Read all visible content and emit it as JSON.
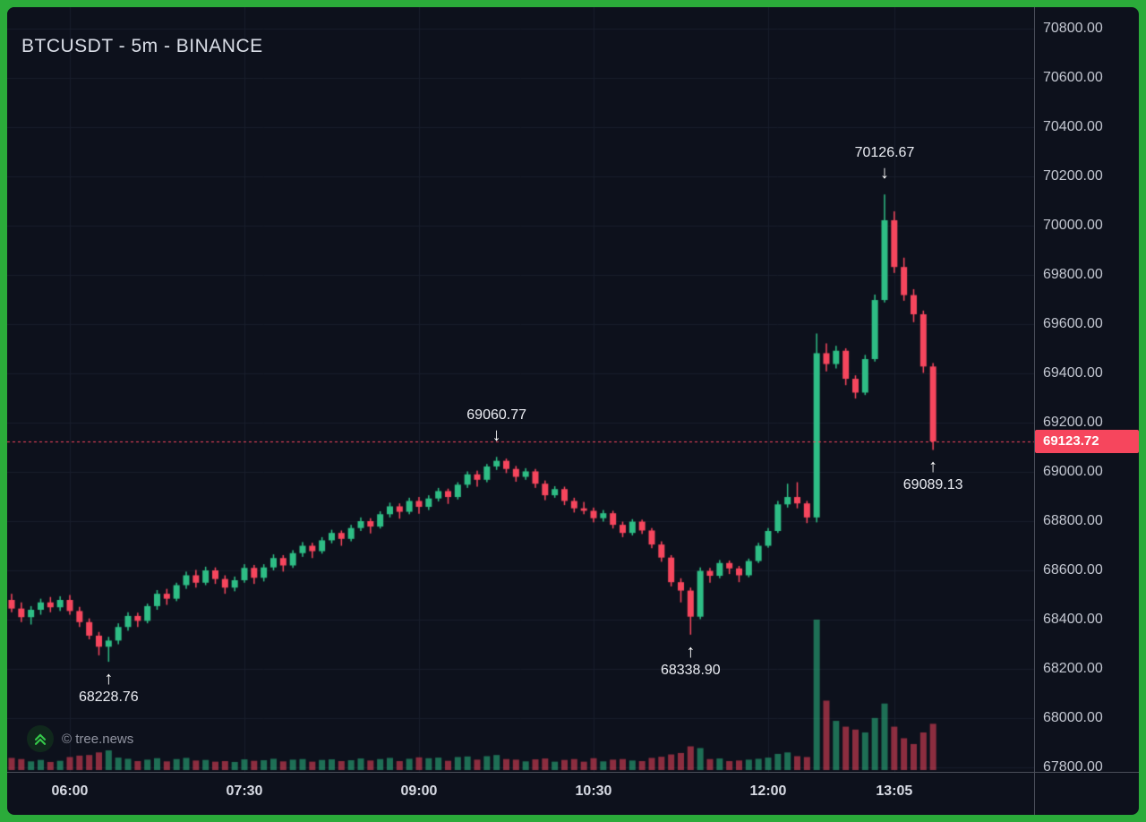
{
  "header": {
    "title": "BTCUSDT - 5m - BINANCE"
  },
  "watermark": {
    "label": "© tree.news"
  },
  "colors": {
    "frame": "#2bab3a",
    "bg": "#0d111c",
    "grid": "#181d2b",
    "up": "#2ebd85",
    "down": "#f6465d",
    "axis_text": "#c3c7d1",
    "time_text": "#d8dbe4",
    "price_tag_bg": "#f6465d",
    "price_line": "#f6465d",
    "annotation_text": "#eceef4",
    "separator": "#4a4e5a",
    "logo_green": "#35c94a"
  },
  "chart_data": {
    "type": "candlestick",
    "title": "BTCUSDT - 5m - BINANCE",
    "symbol": "BTCUSDT",
    "interval": "5m",
    "exchange": "BINANCE",
    "start_time": "05:30",
    "interval_min": 5,
    "grid": true,
    "y_axis": {
      "min": 67800,
      "max": 70800,
      "tick_step": 200,
      "labels": [
        "70800.00",
        "70600.00",
        "70400.00",
        "70200.00",
        "70000.00",
        "69800.00",
        "69600.00",
        "69400.00",
        "69200.00",
        "69000.00",
        "68800.00",
        "68600.00",
        "68400.00",
        "68200.00",
        "68000.00",
        "67800.00"
      ]
    },
    "x_ticks": [
      {
        "label": "06:00",
        "idx": 6
      },
      {
        "label": "07:30",
        "idx": 24
      },
      {
        "label": "09:00",
        "idx": 42
      },
      {
        "label": "10:30",
        "idx": 60
      },
      {
        "label": "12:00",
        "idx": 78
      },
      {
        "label": "13:05",
        "idx": 91
      }
    ],
    "current_price": {
      "value": 69123.72,
      "label": "69123.72"
    },
    "annotations": [
      {
        "label": "70126.67",
        "idx": 90,
        "price": 70126.67,
        "dir": "high"
      },
      {
        "label": "69060.77",
        "idx": 50,
        "price": 69060.77,
        "dir": "high"
      },
      {
        "label": "68338.90",
        "idx": 70,
        "price": 68338.9,
        "dir": "low"
      },
      {
        "label": "68228.76",
        "idx": 10,
        "price": 68228.76,
        "dir": "low"
      },
      {
        "label": "69089.13",
        "idx": 95,
        "price": 69089.13,
        "dir": "low"
      }
    ],
    "candles": [
      [
        68480,
        68505,
        68430,
        68445,
        420
      ],
      [
        68445,
        68470,
        68390,
        68410,
        380
      ],
      [
        68410,
        68455,
        68380,
        68440,
        300
      ],
      [
        68440,
        68485,
        68420,
        68470,
        350
      ],
      [
        68470,
        68492,
        68430,
        68450,
        280
      ],
      [
        68450,
        68495,
        68435,
        68480,
        320
      ],
      [
        68480,
        68500,
        68420,
        68435,
        450
      ],
      [
        68435,
        68452,
        68370,
        68390,
        500
      ],
      [
        68390,
        68405,
        68320,
        68335,
        520
      ],
      [
        68335,
        68350,
        68255,
        68290,
        610
      ],
      [
        68290,
        68330,
        68228.76,
        68315,
        680
      ],
      [
        68315,
        68385,
        68300,
        68370,
        430
      ],
      [
        68370,
        68430,
        68355,
        68415,
        390
      ],
      [
        68415,
        68428,
        68370,
        68395,
        310
      ],
      [
        68395,
        68465,
        68385,
        68455,
        360
      ],
      [
        68455,
        68520,
        68440,
        68505,
        410
      ],
      [
        68505,
        68525,
        68460,
        68485,
        300
      ],
      [
        68485,
        68550,
        68475,
        68540,
        380
      ],
      [
        68540,
        68595,
        68525,
        68580,
        420
      ],
      [
        68580,
        68602,
        68530,
        68550,
        330
      ],
      [
        68550,
        68615,
        68540,
        68600,
        350
      ],
      [
        68600,
        68612,
        68545,
        68565,
        290
      ],
      [
        68565,
        68580,
        68505,
        68530,
        310
      ],
      [
        68530,
        68575,
        68515,
        68560,
        280
      ],
      [
        68560,
        68625,
        68550,
        68610,
        370
      ],
      [
        68610,
        68622,
        68545,
        68570,
        320
      ],
      [
        68570,
        68625,
        68555,
        68612,
        340
      ],
      [
        68612,
        68665,
        68600,
        68650,
        390
      ],
      [
        68650,
        68662,
        68595,
        68620,
        300
      ],
      [
        68620,
        68682,
        68610,
        68670,
        360
      ],
      [
        68670,
        68715,
        68655,
        68700,
        380
      ],
      [
        68700,
        68712,
        68650,
        68678,
        290
      ],
      [
        68678,
        68735,
        68668,
        68722,
        350
      ],
      [
        68722,
        68765,
        68710,
        68752,
        370
      ],
      [
        68752,
        68762,
        68700,
        68728,
        310
      ],
      [
        68728,
        68785,
        68718,
        68772,
        340
      ],
      [
        68772,
        68815,
        68760,
        68800,
        400
      ],
      [
        68800,
        68812,
        68750,
        68778,
        330
      ],
      [
        68778,
        68840,
        68770,
        68828,
        380
      ],
      [
        68828,
        68875,
        68815,
        68860,
        420
      ],
      [
        68860,
        68872,
        68810,
        68838,
        310
      ],
      [
        68838,
        68895,
        68828,
        68882,
        390
      ],
      [
        68882,
        68898,
        68830,
        68858,
        440
      ],
      [
        68858,
        68905,
        68845,
        68892,
        410
      ],
      [
        68892,
        68935,
        68880,
        68922,
        430
      ],
      [
        68922,
        68932,
        68870,
        68898,
        320
      ],
      [
        68898,
        68958,
        68888,
        68948,
        450
      ],
      [
        68948,
        69002,
        68935,
        68990,
        470
      ],
      [
        68990,
        69005,
        68940,
        68968,
        360
      ],
      [
        68968,
        69032,
        68958,
        69022,
        480
      ],
      [
        69022,
        69060.77,
        69008,
        69045,
        520
      ],
      [
        69045,
        69054,
        68995,
        69012,
        380
      ],
      [
        69012,
        69024,
        68960,
        68980,
        360
      ],
      [
        68980,
        69015,
        68968,
        69002,
        300
      ],
      [
        69002,
        69012,
        68935,
        68952,
        370
      ],
      [
        68952,
        68965,
        68885,
        68905,
        400
      ],
      [
        68905,
        68942,
        68895,
        68930,
        290
      ],
      [
        68930,
        68940,
        68865,
        68882,
        350
      ],
      [
        68882,
        68895,
        68835,
        68852,
        380
      ],
      [
        68852,
        68878,
        68828,
        68842,
        290
      ],
      [
        68842,
        68855,
        68795,
        68812,
        410
      ],
      [
        68812,
        68845,
        68798,
        68832,
        300
      ],
      [
        68832,
        68842,
        68770,
        68785,
        360
      ],
      [
        68785,
        68798,
        68735,
        68752,
        380
      ],
      [
        68752,
        68808,
        68742,
        68798,
        330
      ],
      [
        68798,
        68806,
        68748,
        68762,
        310
      ],
      [
        68762,
        68772,
        68690,
        68705,
        420
      ],
      [
        68705,
        68718,
        68635,
        68652,
        460
      ],
      [
        68652,
        68662,
        68535,
        68552,
        540
      ],
      [
        68552,
        68568,
        68470,
        68518,
        590
      ],
      [
        68518,
        68530,
        68338.9,
        68412,
        820
      ],
      [
        68412,
        68612,
        68402,
        68598,
        760
      ],
      [
        68598,
        68610,
        68550,
        68578,
        380
      ],
      [
        68578,
        68642,
        68568,
        68630,
        400
      ],
      [
        68630,
        68640,
        68585,
        68608,
        310
      ],
      [
        68608,
        68618,
        68552,
        68580,
        330
      ],
      [
        68580,
        68648,
        68572,
        68638,
        360
      ],
      [
        68638,
        68712,
        68630,
        68700,
        390
      ],
      [
        68700,
        68772,
        68692,
        68760,
        430
      ],
      [
        68760,
        68882,
        68752,
        68868,
        560
      ],
      [
        68868,
        68952,
        68855,
        68898,
        610
      ],
      [
        68898,
        68958,
        68852,
        68872,
        480
      ],
      [
        68872,
        68882,
        68792,
        68815,
        450
      ],
      [
        68815,
        69562,
        68795,
        69482,
        5200
      ],
      [
        69482,
        69522,
        69408,
        69438,
        2400
      ],
      [
        69438,
        69512,
        69420,
        69492,
        1700
      ],
      [
        69492,
        69502,
        69352,
        69378,
        1500
      ],
      [
        69378,
        69392,
        69298,
        69322,
        1400
      ],
      [
        69322,
        69475,
        69312,
        69458,
        1300
      ],
      [
        69458,
        69720,
        69448,
        69698,
        1800
      ],
      [
        69698,
        70126.67,
        69688,
        70022,
        2300
      ],
      [
        70022,
        70058,
        69808,
        69832,
        1500
      ],
      [
        69832,
        69870,
        69695,
        69718,
        1100
      ],
      [
        69718,
        69742,
        69608,
        69640,
        900
      ],
      [
        69640,
        69655,
        69402,
        69428,
        1300
      ],
      [
        69428,
        69442,
        69089.13,
        69123.72,
        1600
      ]
    ]
  }
}
